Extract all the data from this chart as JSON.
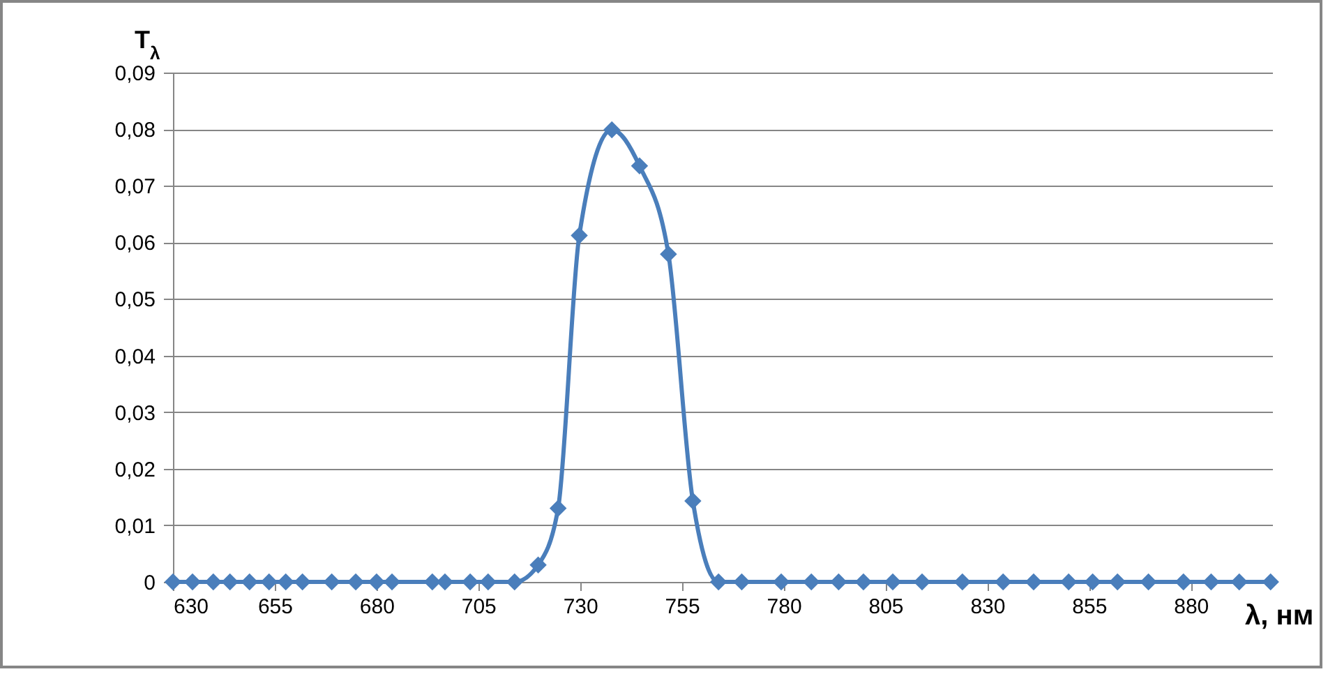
{
  "chart_data": {
    "type": "line",
    "xlabel": "λ, нм",
    "ylabel": "T$_{λ}$",
    "x": [
      630,
      634.8,
      639.9,
      644,
      648.8,
      653.6,
      657.7,
      661.8,
      669,
      674.9,
      680,
      683.8,
      693.7,
      696.8,
      703,
      707.4,
      713.9,
      719.7,
      724.6,
      729.8,
      737.8,
      744.6,
      751.7,
      757.7,
      764,
      769.7,
      779.4,
      786.8,
      793.5,
      799.6,
      806.8,
      814,
      823.9,
      833.9,
      841.4,
      850,
      855.9,
      862,
      869.6,
      878.2,
      885,
      891.9,
      899.6
    ],
    "series": [
      {
        "color": "#4a7ebb",
        "values": [
          0,
          0,
          0,
          0,
          0,
          0,
          0,
          0,
          0,
          0,
          0,
          0,
          0,
          0,
          0,
          0,
          0,
          0.003,
          0.013,
          0.0612,
          0.0799,
          0.0735,
          0.0579,
          0.0143,
          0,
          0,
          0,
          0,
          0,
          0,
          0,
          0,
          0,
          0,
          0,
          0,
          0,
          0,
          0,
          0,
          0,
          0,
          0
        ]
      }
    ],
    "xlim": [
      630,
      900
    ],
    "xticks": [
      630,
      655,
      680,
      705,
      730,
      755,
      780,
      805,
      830,
      855,
      880
    ],
    "ylim": [
      0,
      0.09
    ],
    "yticks": [
      0,
      {
        "value": 0.01,
        "label": "0,01"
      },
      {
        "value": 0.02,
        "label": "0,02"
      },
      {
        "value": 0.03,
        "label": "0,03"
      },
      {
        "value": 0.04,
        "label": "0,04"
      },
      {
        "value": 0.05,
        "label": "0,05"
      },
      {
        "value": 0.06,
        "label": "0,06"
      },
      {
        "value": 0.07,
        "label": "0,07"
      },
      {
        "value": 0.08,
        "label": "0,08"
      },
      {
        "value": 0.09,
        "label": "0,09"
      }
    ],
    "grid": "y",
    "marker": "diamond",
    "line_style": "solid"
  }
}
